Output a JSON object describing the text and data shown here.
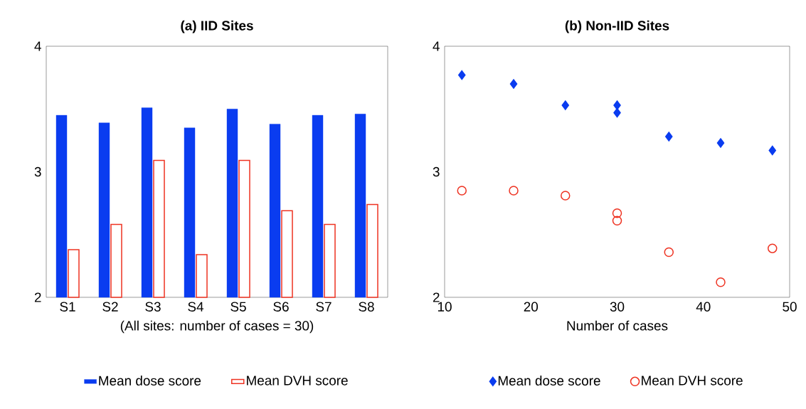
{
  "chart_data": [
    {
      "type": "bar",
      "title": "(a) IID Sites",
      "xlabel": "(All sites: number of cases = 30)",
      "categories": [
        "S1",
        "S2",
        "S3",
        "S4",
        "S5",
        "S6",
        "S7",
        "S8"
      ],
      "series": [
        {
          "name": "Mean dose score",
          "color": "#0a3cf0",
          "values": [
            3.45,
            3.39,
            3.51,
            3.35,
            3.5,
            3.38,
            3.45,
            3.46
          ]
        },
        {
          "name": "Mean DVH score",
          "color": "#ee3322",
          "values": [
            2.38,
            2.58,
            3.09,
            2.34,
            3.09,
            2.69,
            2.58,
            2.74
          ]
        }
      ],
      "ylim": [
        2,
        4
      ],
      "yticks": [
        2,
        3,
        4
      ],
      "legend": "bottom"
    },
    {
      "type": "scatter",
      "title": "(b) Non-IID Sites",
      "xlabel": "Number of cases",
      "series": [
        {
          "name": "Mean dose score",
          "color": "#0a3cf0",
          "marker": "diamond",
          "x": [
            12,
            18,
            24,
            30,
            30,
            36,
            42,
            48
          ],
          "values": [
            3.77,
            3.7,
            3.53,
            3.53,
            3.47,
            3.28,
            3.23,
            3.17
          ]
        },
        {
          "name": "Mean DVH score",
          "color": "#ee3322",
          "marker": "circle",
          "x": [
            12,
            18,
            24,
            30,
            30,
            36,
            42,
            48
          ],
          "values": [
            2.85,
            2.85,
            2.81,
            2.67,
            2.61,
            2.36,
            2.12,
            2.39
          ]
        }
      ],
      "xlim": [
        10,
        50
      ],
      "xticks": [
        10,
        20,
        30,
        40,
        50
      ],
      "ylim": [
        2,
        4
      ],
      "yticks": [
        2,
        3,
        4
      ],
      "legend": "bottom"
    }
  ]
}
